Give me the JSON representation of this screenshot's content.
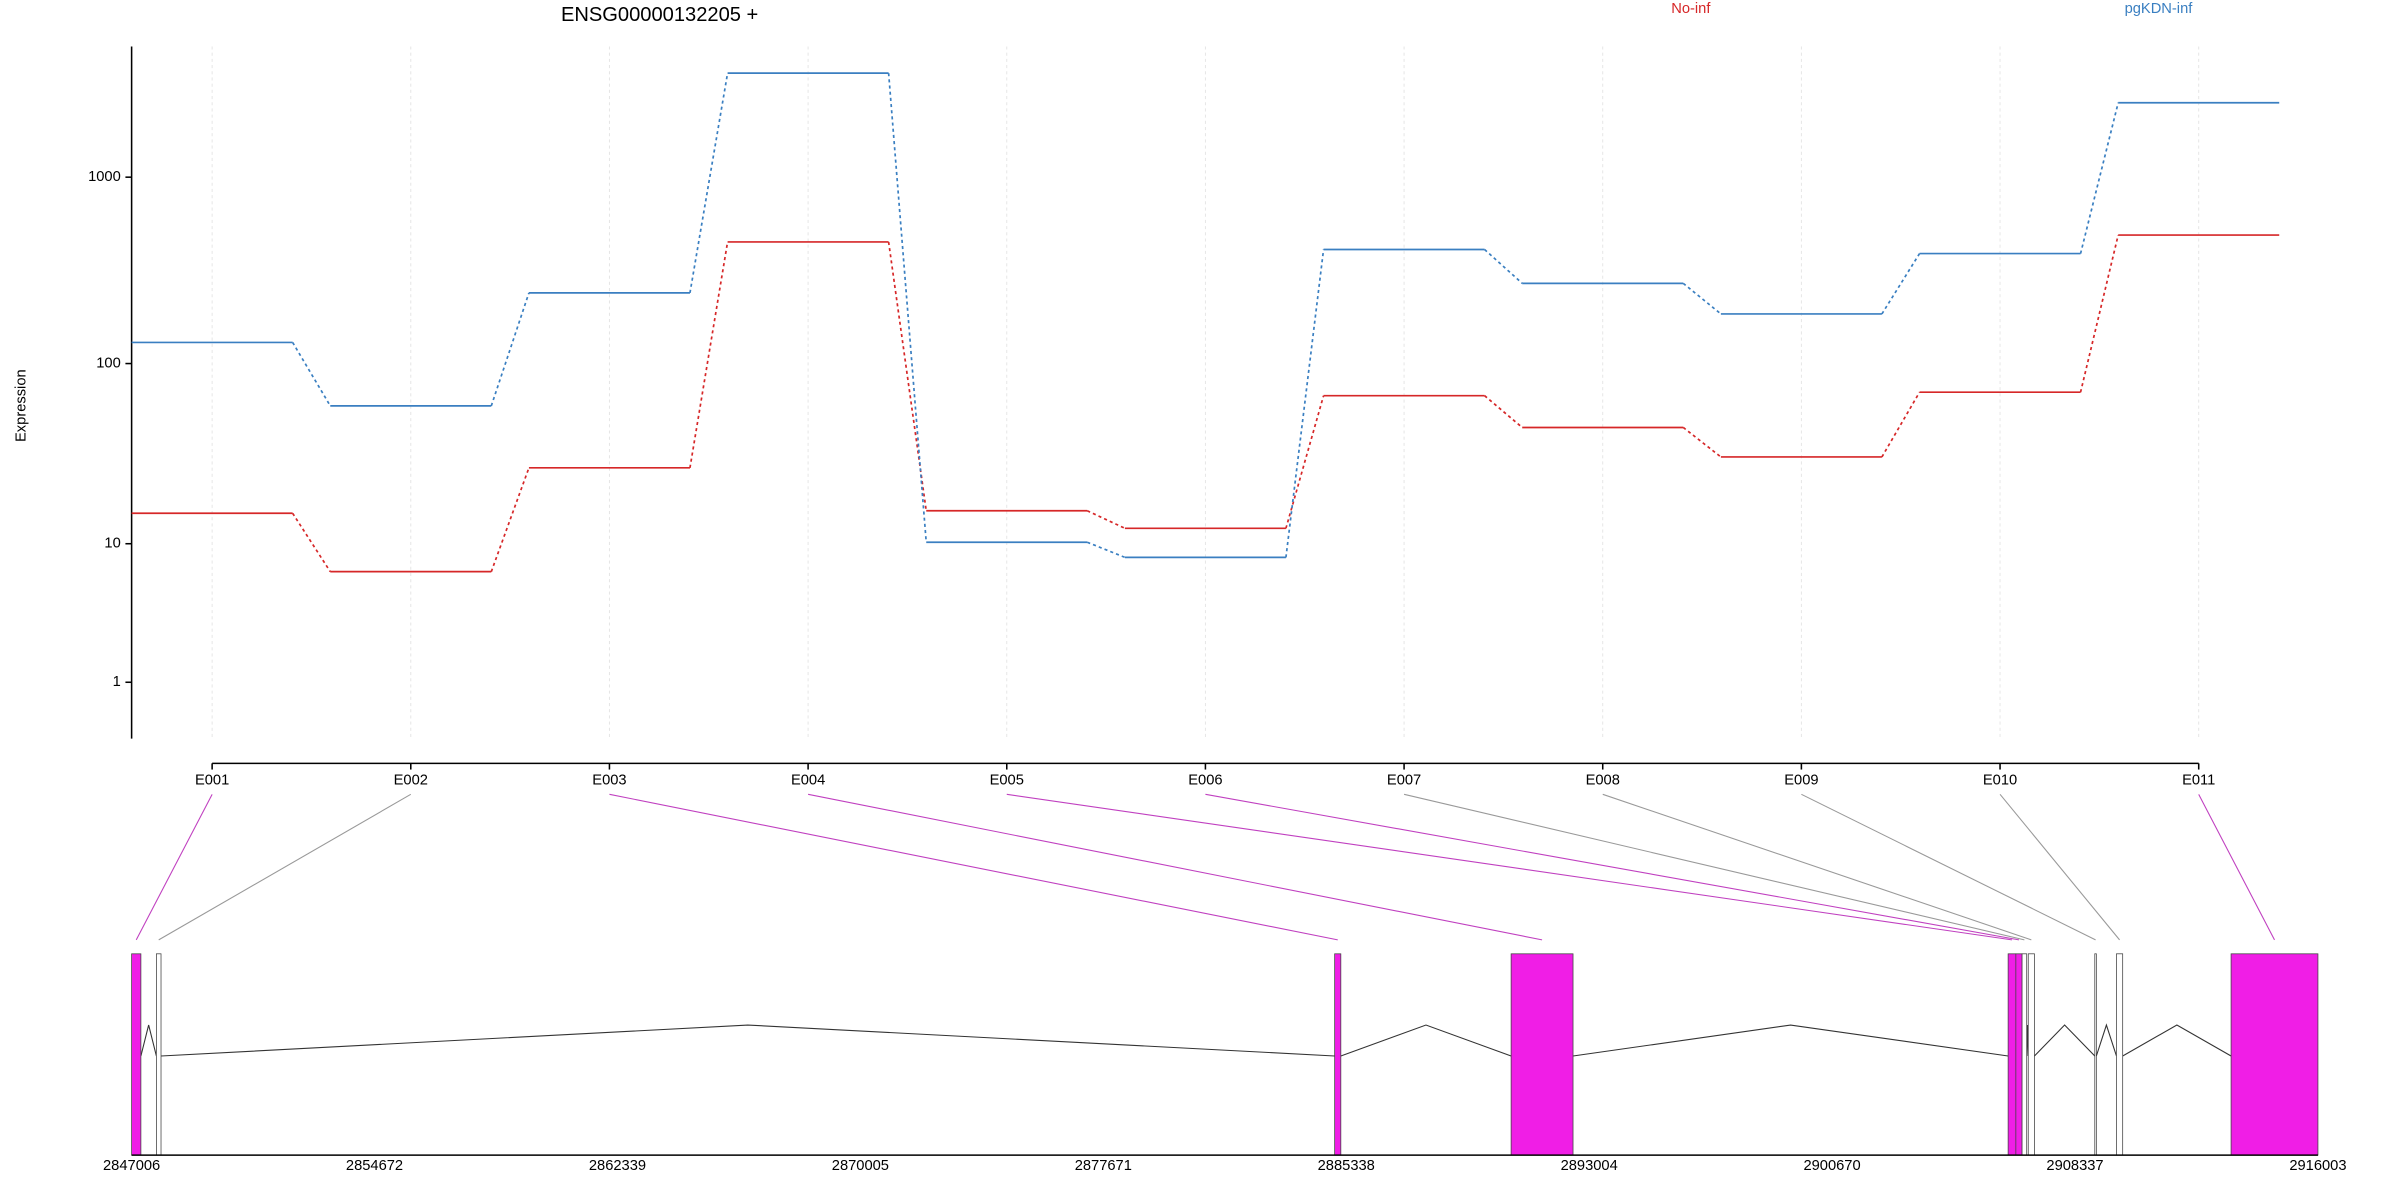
{
  "chart_data": {
    "type": "line",
    "title": "ENSG00000132205 +",
    "y_label": "Expression",
    "categories": [
      "E001",
      "E002",
      "E003",
      "E004",
      "E005",
      "E006",
      "E007",
      "E008",
      "E009",
      "E010",
      "E011"
    ],
    "log_scale": true,
    "ylim": [
      0,
      5000
    ],
    "yticks": [
      1,
      10,
      100,
      1000
    ],
    "grid": true,
    "series": [
      {
        "name": "No-inf",
        "color": "#d62728",
        "values": [
          15,
          6.8,
          27,
          450,
          15.5,
          12.3,
          67,
          45,
          31,
          70,
          490
        ]
      },
      {
        "name": "pgKDN-inf",
        "color": "#3a7fc1",
        "values": [
          130,
          59,
          240,
          3600,
          10.2,
          8.3,
          410,
          270,
          185,
          390,
          2500
        ]
      }
    ],
    "gene_model": {
      "xlim": [
        2847006,
        2916003
      ],
      "xticks": [
        2847006,
        2854672,
        2862339,
        2870005,
        2877671,
        2885338,
        2893004,
        2900670,
        2908337,
        2916003
      ],
      "exons": [
        {
          "start": 2847006,
          "end": 2847299,
          "color": "#f01ee6"
        },
        {
          "start": 2847788,
          "end": 2847934,
          "color": "#ffffff"
        },
        {
          "start": 2884972,
          "end": 2885167,
          "color": "#f01ee6"
        },
        {
          "start": 2890541,
          "end": 2892495,
          "color": "#f01ee6"
        },
        {
          "start": 2906226,
          "end": 2906470,
          "color": "#f01ee6"
        },
        {
          "start": 2906470,
          "end": 2906666,
          "color": "#f01ee6"
        },
        {
          "start": 2906666,
          "end": 2906812,
          "color": "#ffffff"
        },
        {
          "start": 2906861,
          "end": 2907056,
          "color": "#ffffff"
        },
        {
          "start": 2908961,
          "end": 2909010,
          "color": "#ffffff"
        },
        {
          "start": 2909645,
          "end": 2909841,
          "color": "#ffffff"
        },
        {
          "start": 2913262,
          "end": 2916003,
          "color": "#f01ee6"
        }
      ]
    }
  }
}
